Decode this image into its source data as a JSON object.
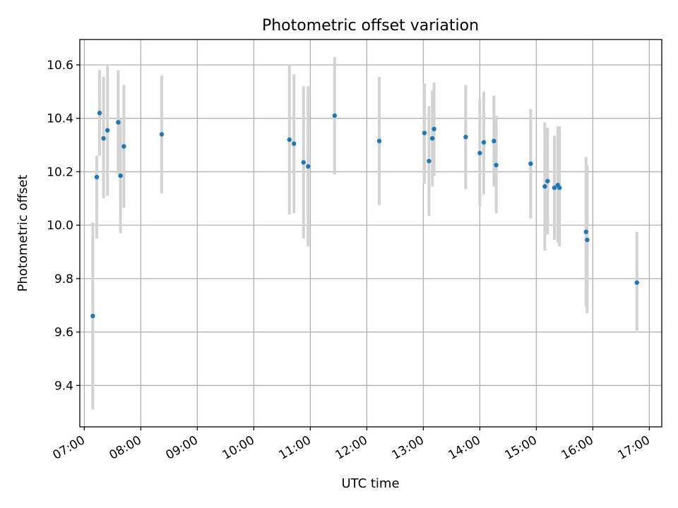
{
  "chart_data": {
    "type": "scatter",
    "title": "Photometric offset variation",
    "xlabel": "UTC time",
    "ylabel": "Photometric offset",
    "x_unit": "hours (UTC)",
    "xlim": [
      6.92,
      17.22
    ],
    "ylim": [
      9.245,
      10.695
    ],
    "x_ticks": [
      {
        "value": 7,
        "label": "07:00"
      },
      {
        "value": 8,
        "label": "08:00"
      },
      {
        "value": 9,
        "label": "09:00"
      },
      {
        "value": 10,
        "label": "10:00"
      },
      {
        "value": 11,
        "label": "11:00"
      },
      {
        "value": 12,
        "label": "12:00"
      },
      {
        "value": 13,
        "label": "13:00"
      },
      {
        "value": 14,
        "label": "14:00"
      },
      {
        "value": 15,
        "label": "15:00"
      },
      {
        "value": 16,
        "label": "16:00"
      },
      {
        "value": 17,
        "label": "17:00"
      }
    ],
    "y_ticks": [
      {
        "value": 9.4,
        "label": "9.4"
      },
      {
        "value": 9.6,
        "label": "9.6"
      },
      {
        "value": 9.8,
        "label": "9.8"
      },
      {
        "value": 10.0,
        "label": "10.0"
      },
      {
        "value": 10.2,
        "label": "10.2"
      },
      {
        "value": 10.4,
        "label": "10.4"
      },
      {
        "value": 10.6,
        "label": "10.6"
      }
    ],
    "grid": true,
    "marker_color": "#1f77b4",
    "errorbar_color": "#d3d3d3",
    "points": [
      {
        "x": 7.15,
        "y": 9.66,
        "err_low": 9.31,
        "err_high": 10.01
      },
      {
        "x": 7.22,
        "y": 10.18,
        "err_low": 9.95,
        "err_high": 10.26
      },
      {
        "x": 7.27,
        "y": 10.42,
        "err_low": 10.26,
        "err_high": 10.58
      },
      {
        "x": 7.34,
        "y": 10.325,
        "err_low": 10.1,
        "err_high": 10.555
      },
      {
        "x": 7.41,
        "y": 10.355,
        "err_low": 10.11,
        "err_high": 10.6
      },
      {
        "x": 7.6,
        "y": 10.385,
        "err_low": 10.19,
        "err_high": 10.58
      },
      {
        "x": 7.64,
        "y": 10.185,
        "err_low": 9.97,
        "err_high": 10.4
      },
      {
        "x": 7.7,
        "y": 10.295,
        "err_low": 10.065,
        "err_high": 10.525
      },
      {
        "x": 8.37,
        "y": 10.34,
        "err_low": 10.12,
        "err_high": 10.56
      },
      {
        "x": 10.63,
        "y": 10.32,
        "err_low": 10.04,
        "err_high": 10.6
      },
      {
        "x": 10.71,
        "y": 10.305,
        "err_low": 10.045,
        "err_high": 10.565
      },
      {
        "x": 10.88,
        "y": 10.235,
        "err_low": 9.95,
        "err_high": 10.52
      },
      {
        "x": 10.96,
        "y": 10.22,
        "err_low": 9.92,
        "err_high": 10.52
      },
      {
        "x": 11.43,
        "y": 10.41,
        "err_low": 10.19,
        "err_high": 10.63
      },
      {
        "x": 12.22,
        "y": 10.315,
        "err_low": 10.075,
        "err_high": 10.555
      },
      {
        "x": 13.02,
        "y": 10.345,
        "err_low": 10.155,
        "err_high": 10.53
      },
      {
        "x": 13.1,
        "y": 10.24,
        "err_low": 10.035,
        "err_high": 10.445
      },
      {
        "x": 13.16,
        "y": 10.325,
        "err_low": 10.145,
        "err_high": 10.505
      },
      {
        "x": 13.19,
        "y": 10.36,
        "err_low": 10.185,
        "err_high": 10.535
      },
      {
        "x": 13.75,
        "y": 10.33,
        "err_low": 10.135,
        "err_high": 10.525
      },
      {
        "x": 14.0,
        "y": 10.27,
        "err_low": 10.07,
        "err_high": 10.47
      },
      {
        "x": 14.07,
        "y": 10.31,
        "err_low": 10.115,
        "err_high": 10.5
      },
      {
        "x": 14.25,
        "y": 10.315,
        "err_low": 10.145,
        "err_high": 10.485
      },
      {
        "x": 14.29,
        "y": 10.225,
        "err_low": 10.045,
        "err_high": 10.41
      },
      {
        "x": 14.9,
        "y": 10.23,
        "err_low": 10.025,
        "err_high": 10.435
      },
      {
        "x": 15.15,
        "y": 10.145,
        "err_low": 9.905,
        "err_high": 10.385
      },
      {
        "x": 15.2,
        "y": 10.165,
        "err_low": 9.965,
        "err_high": 10.365
      },
      {
        "x": 15.32,
        "y": 10.14,
        "err_low": 9.945,
        "err_high": 10.335
      },
      {
        "x": 15.38,
        "y": 10.15,
        "err_low": 9.935,
        "err_high": 10.37
      },
      {
        "x": 15.41,
        "y": 10.14,
        "err_low": 9.92,
        "err_high": 10.37
      },
      {
        "x": 15.88,
        "y": 9.975,
        "err_low": 9.695,
        "err_high": 10.255
      },
      {
        "x": 15.9,
        "y": 9.945,
        "err_low": 9.67,
        "err_high": 10.225
      },
      {
        "x": 16.78,
        "y": 9.785,
        "err_low": 9.605,
        "err_high": 9.975
      }
    ]
  }
}
